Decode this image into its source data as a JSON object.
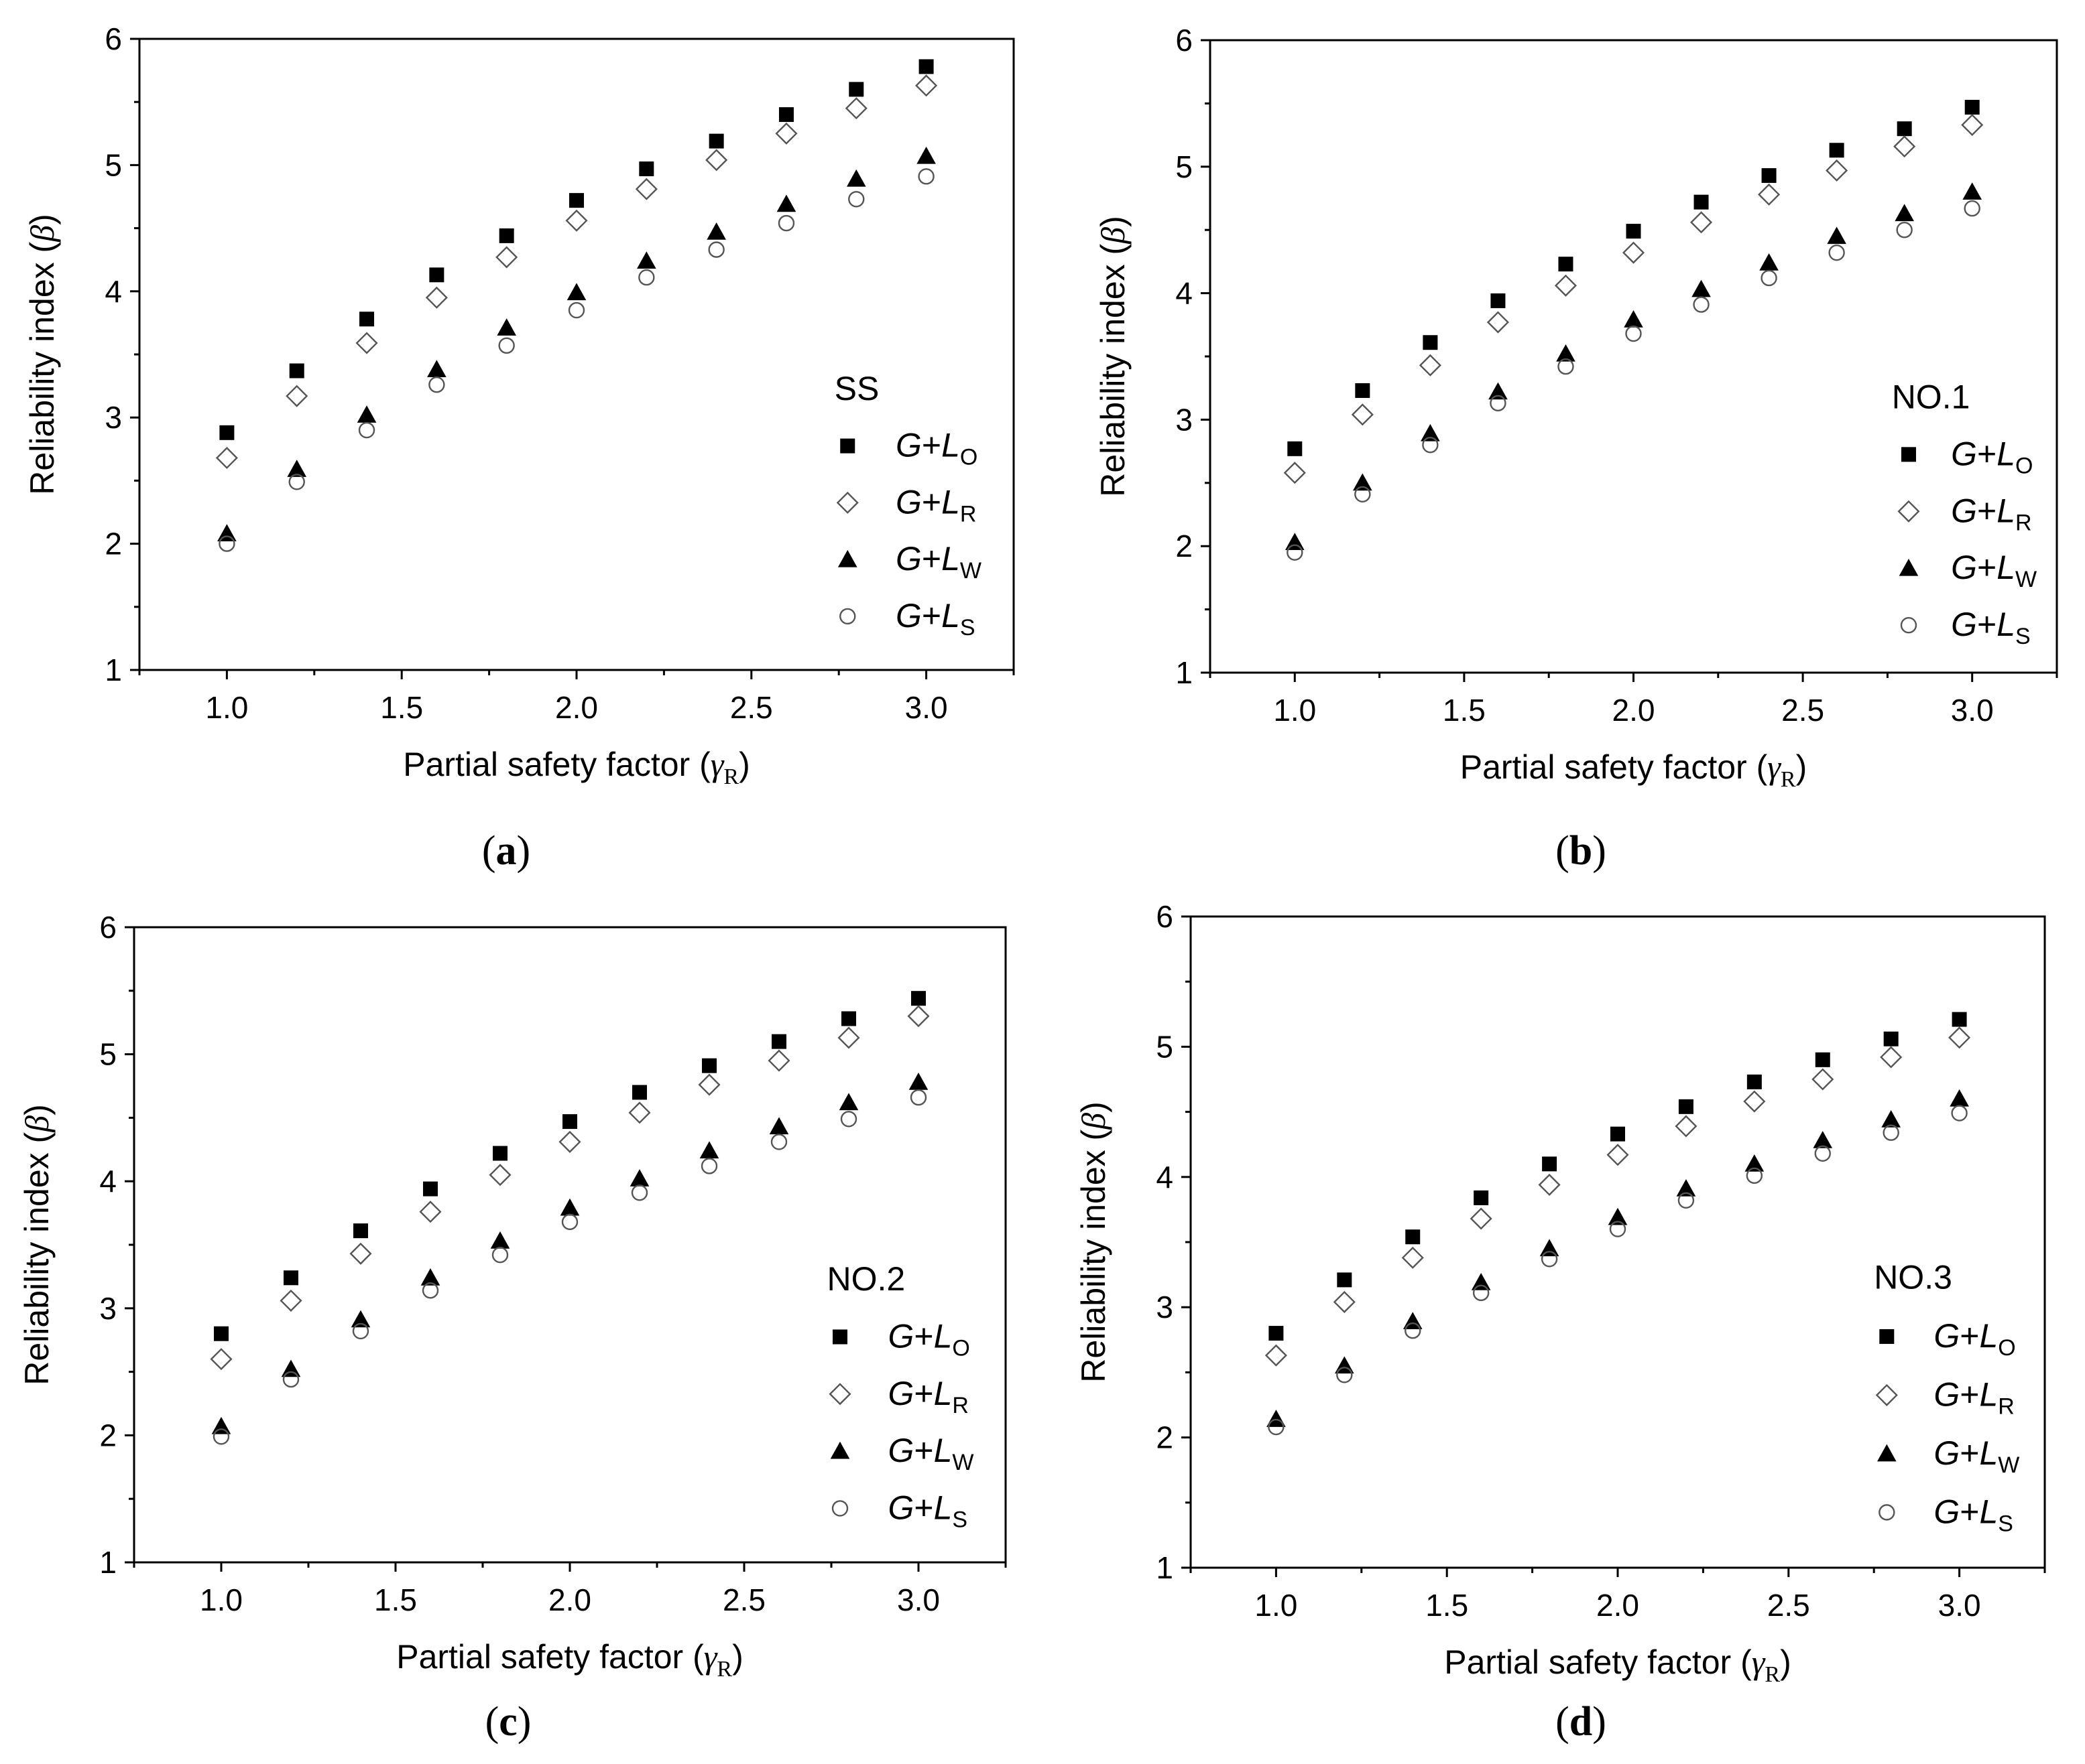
{
  "figure": {
    "panels": [
      {
        "panel_label": "(a)",
        "legend_title": "SS",
        "chart_data": {
          "type": "scatter",
          "title": "SS",
          "xlabel": "Partial safety factor (γR)",
          "ylabel": "Reliability index (β)",
          "xlim": [
            0.75,
            3.25
          ],
          "ylim": [
            1,
            6
          ],
          "xticks": [
            "1.0",
            "1.5",
            "2.0",
            "2.5",
            "3.0"
          ],
          "yticks": [
            "1",
            "2",
            "3",
            "4",
            "5",
            "6"
          ],
          "legend_position": "right",
          "x": [
            1.0,
            1.2,
            1.4,
            1.6,
            1.8,
            2.0,
            2.2,
            2.4,
            2.6,
            2.8,
            3.0
          ],
          "series": [
            {
              "name": "G+LO",
              "marker": "filled-square",
              "values": [
                2.88,
                3.37,
                3.78,
                4.13,
                4.44,
                4.72,
                4.97,
                5.19,
                5.4,
                5.6,
                5.78
              ]
            },
            {
              "name": "G+LR",
              "marker": "open-diamond",
              "values": [
                2.68,
                3.17,
                3.59,
                3.95,
                4.27,
                4.56,
                4.81,
                5.04,
                5.25,
                5.45,
                5.63
              ]
            },
            {
              "name": "G+LW",
              "marker": "filled-triangle",
              "values": [
                2.08,
                2.59,
                3.02,
                3.38,
                3.71,
                3.99,
                4.24,
                4.47,
                4.69,
                4.89,
                5.07
              ]
            },
            {
              "name": "G+LS",
              "marker": "open-circle",
              "values": [
                2.0,
                2.49,
                2.9,
                3.26,
                3.57,
                3.85,
                4.11,
                4.33,
                4.54,
                4.73,
                4.91
              ]
            }
          ]
        }
      },
      {
        "panel_label": "(b)",
        "legend_title": "NO.1",
        "chart_data": {
          "type": "scatter",
          "title": "NO.1",
          "xlabel": "Partial safety factor (γR)",
          "ylabel": "Reliability index (β)",
          "xlim": [
            0.75,
            3.25
          ],
          "ylim": [
            1,
            6
          ],
          "xticks": [
            "1.0",
            "1.5",
            "2.0",
            "2.5",
            "3.0"
          ],
          "yticks": [
            "1",
            "2",
            "3",
            "4",
            "5",
            "6"
          ],
          "legend_position": "right",
          "x": [
            1.0,
            1.2,
            1.4,
            1.6,
            1.8,
            2.0,
            2.2,
            2.4,
            2.6,
            2.8,
            3.0
          ],
          "series": [
            {
              "name": "G+LO",
              "marker": "filled-square",
              "values": [
                2.77,
                3.23,
                3.61,
                3.94,
                4.23,
                4.49,
                4.72,
                4.93,
                5.13,
                5.3,
                5.47
              ]
            },
            {
              "name": "G+LR",
              "marker": "open-diamond",
              "values": [
                2.58,
                3.04,
                3.43,
                3.77,
                4.06,
                4.32,
                4.56,
                4.78,
                4.97,
                5.16,
                5.33
              ]
            },
            {
              "name": "G+LW",
              "marker": "filled-triangle",
              "values": [
                2.03,
                2.5,
                2.89,
                3.22,
                3.52,
                3.79,
                4.03,
                4.24,
                4.45,
                4.63,
                4.8
              ]
            },
            {
              "name": "G+LS",
              "marker": "open-circle",
              "values": [
                1.95,
                2.41,
                2.8,
                3.13,
                3.42,
                3.68,
                3.91,
                4.12,
                4.32,
                4.5,
                4.67
              ]
            }
          ]
        }
      },
      {
        "panel_label": "(c)",
        "legend_title": "NO.2",
        "chart_data": {
          "type": "scatter",
          "title": "NO.2",
          "xlabel": "Partial safety factor (γR)",
          "ylabel": "Reliability index (β)",
          "xlim": [
            0.75,
            3.25
          ],
          "ylim": [
            1,
            6
          ],
          "xticks": [
            "1.0",
            "1.5",
            "2.0",
            "2.5",
            "3.0"
          ],
          "yticks": [
            "1",
            "2",
            "3",
            "4",
            "5",
            "6"
          ],
          "legend_position": "right",
          "x": [
            1.0,
            1.2,
            1.4,
            1.6,
            1.8,
            2.0,
            2.2,
            2.4,
            2.6,
            2.8,
            3.0
          ],
          "series": [
            {
              "name": "G+LO",
              "marker": "filled-square",
              "values": [
                2.8,
                3.24,
                3.61,
                3.94,
                4.22,
                4.47,
                4.7,
                4.91,
                5.1,
                5.28,
                5.44
              ]
            },
            {
              "name": "G+LR",
              "marker": "open-diamond",
              "values": [
                2.6,
                3.06,
                3.43,
                3.76,
                4.05,
                4.31,
                4.54,
                4.76,
                4.95,
                5.13,
                5.3
              ]
            },
            {
              "name": "G+LW",
              "marker": "filled-triangle",
              "values": [
                2.07,
                2.52,
                2.91,
                3.24,
                3.53,
                3.79,
                4.02,
                4.24,
                4.43,
                4.62,
                4.78
              ]
            },
            {
              "name": "G+LS",
              "marker": "open-circle",
              "values": [
                1.99,
                2.44,
                2.82,
                3.14,
                3.42,
                3.68,
                3.91,
                4.12,
                4.31,
                4.49,
                4.66
              ]
            }
          ]
        }
      },
      {
        "panel_label": "(d)",
        "legend_title": "NO.3",
        "chart_data": {
          "type": "scatter",
          "title": "NO.3",
          "xlabel": "Partial safety factor (γR)",
          "ylabel": "Reliability index (β)",
          "xlim": [
            0.75,
            3.25
          ],
          "ylim": [
            1,
            6
          ],
          "xticks": [
            "1.0",
            "1.5",
            "2.0",
            "2.5",
            "3.0"
          ],
          "yticks": [
            "1",
            "2",
            "3",
            "4",
            "5",
            "6"
          ],
          "legend_position": "right",
          "x": [
            1.0,
            1.2,
            1.4,
            1.6,
            1.8,
            2.0,
            2.2,
            2.4,
            2.6,
            2.8,
            3.0
          ],
          "series": [
            {
              "name": "G+LO",
              "marker": "filled-square",
              "values": [
                2.8,
                3.21,
                3.54,
                3.84,
                4.1,
                4.33,
                4.54,
                4.73,
                4.9,
                5.06,
                5.21
              ]
            },
            {
              "name": "G+LR",
              "marker": "open-diamond",
              "values": [
                2.63,
                3.04,
                3.38,
                3.68,
                3.94,
                4.17,
                4.39,
                4.58,
                4.75,
                4.92,
                5.07
              ]
            },
            {
              "name": "G+LW",
              "marker": "filled-triangle",
              "values": [
                2.14,
                2.55,
                2.89,
                3.19,
                3.45,
                3.69,
                3.91,
                4.1,
                4.28,
                4.44,
                4.6
              ]
            },
            {
              "name": "G+LS",
              "marker": "open-circle",
              "values": [
                2.08,
                2.48,
                2.82,
                3.11,
                3.37,
                3.6,
                3.82,
                4.01,
                4.18,
                4.34,
                4.49
              ]
            }
          ]
        }
      }
    ]
  }
}
